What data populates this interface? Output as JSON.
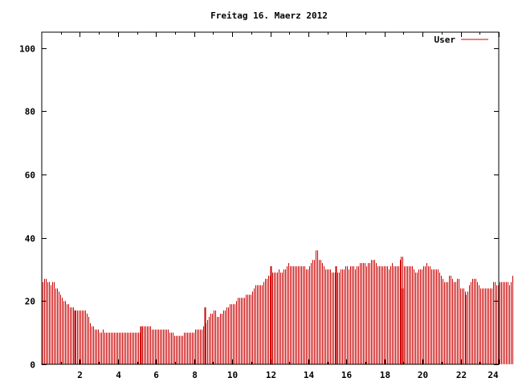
{
  "chart_data": {
    "type": "bar",
    "title": "Freitag 16. Maerz 2012",
    "xlabel": "",
    "ylabel": "",
    "xlim": [
      0,
      24
    ],
    "ylim": [
      0,
      105
    ],
    "x_ticks": [
      "2",
      "4",
      "6",
      "8",
      "10",
      "12",
      "14",
      "16",
      "18",
      "20",
      "22",
      "24"
    ],
    "y_ticks": [
      "0",
      "20",
      "40",
      "60",
      "80",
      "100"
    ],
    "grid": false,
    "legend_position": "top-right",
    "series": [
      {
        "name": "User",
        "color": "#cc0000",
        "interval_minutes": 5,
        "values": [
          26,
          27,
          27,
          26,
          26,
          25,
          26,
          26,
          24,
          24,
          23,
          22,
          21,
          20,
          20,
          19,
          19,
          18,
          18,
          18,
          17,
          17,
          17,
          17,
          17,
          17,
          17,
          17,
          16,
          15,
          13,
          12,
          12,
          11,
          11,
          11,
          10,
          10,
          11,
          10,
          10,
          10,
          10,
          10,
          10,
          10,
          10,
          10,
          10,
          10,
          10,
          10,
          10,
          10,
          10,
          10,
          10,
          10,
          10,
          10,
          10,
          10,
          11,
          12,
          12,
          12,
          12,
          12,
          12,
          11,
          11,
          11,
          11,
          11,
          11,
          11,
          11,
          11,
          11,
          11,
          10,
          10,
          10,
          9,
          9,
          9,
          9,
          9,
          9,
          10,
          10,
          10,
          10,
          10,
          10,
          10,
          11,
          11,
          11,
          11,
          11,
          12,
          12,
          13,
          14,
          15,
          16,
          16,
          17,
          17,
          15,
          15,
          16,
          16,
          17,
          17,
          18,
          18,
          19,
          19,
          19,
          19,
          20,
          21,
          21,
          21,
          21,
          21,
          22,
          22,
          22,
          22,
          23,
          24,
          25,
          25,
          25,
          25,
          25,
          26,
          27,
          27,
          28,
          28,
          28,
          29,
          29,
          29,
          29,
          30,
          29,
          29,
          30,
          30,
          31,
          32,
          31,
          31,
          31,
          31,
          31,
          31,
          31,
          31,
          31,
          31,
          30,
          30,
          31,
          32,
          33,
          33,
          36,
          36,
          33,
          33,
          32,
          31,
          30,
          30,
          30,
          30,
          29,
          29,
          29,
          29,
          29,
          29,
          30,
          30,
          30,
          31,
          31,
          30,
          31,
          31,
          31,
          30,
          31,
          31,
          32,
          32,
          32,
          32,
          31,
          32,
          32,
          33,
          33,
          33,
          32,
          31,
          31,
          31,
          31,
          31,
          31,
          31,
          30,
          31,
          32,
          31,
          31,
          31,
          31,
          33,
          34,
          34,
          31,
          31,
          31,
          31,
          31,
          31,
          30,
          29,
          29,
          30,
          30,
          30,
          31,
          31,
          32,
          31,
          31,
          30,
          30,
          30,
          30,
          30,
          29,
          28,
          27,
          26,
          26,
          26,
          28,
          28,
          27,
          26,
          26,
          27,
          27,
          24,
          24,
          24,
          23,
          22,
          23,
          25,
          26,
          27,
          27,
          27,
          26,
          25,
          24,
          24,
          24,
          24,
          24,
          24,
          24,
          24,
          26,
          26,
          25,
          25,
          26,
          26,
          26,
          26,
          26,
          26,
          25,
          26,
          28,
          29,
          30,
          31,
          31,
          32,
          33,
          34,
          33,
          33,
          32,
          32,
          32,
          32,
          33,
          33,
          33,
          33,
          33,
          33,
          33,
          33,
          33,
          33,
          33,
          32,
          31,
          31,
          30,
          30,
          30,
          29,
          29,
          29,
          28,
          27,
          26,
          25,
          25,
          25,
          25,
          26,
          25,
          25,
          25
        ]
      }
    ],
    "highlight_marks": [
      {
        "x_hours": 1.75,
        "value": 17
      },
      {
        "x_hours": 5.17,
        "value": 12
      },
      {
        "x_hours": 8.58,
        "value": 18
      },
      {
        "x_hours": 12.0,
        "value": 31
      },
      {
        "x_hours": 15.42,
        "value": 31
      },
      {
        "x_hours": 18.92,
        "value": 24
      }
    ]
  }
}
